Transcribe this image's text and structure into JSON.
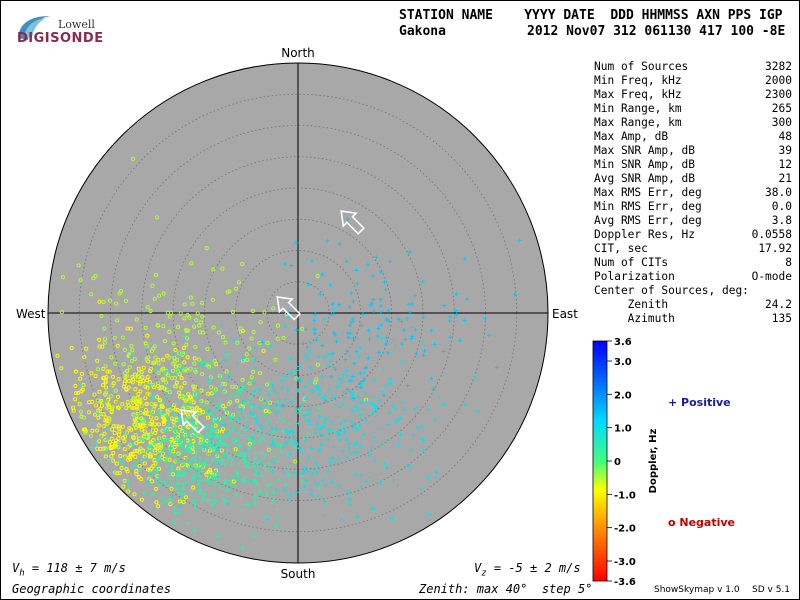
{
  "logo": {
    "line1": "Lowell",
    "line2": "DIGISONDE"
  },
  "header": {
    "row1": "STATION NAME    YYYY DATE  DDD HHMMSS AXN PPS IGP",
    "station": "Gakona",
    "date_row": "2012 Nov07 312 061130 417 100 -8E"
  },
  "stats": [
    {
      "label": "Num of Sources",
      "value": "3282"
    },
    {
      "label": "Min Freq, kHz",
      "value": "2000"
    },
    {
      "label": "Max Freq, kHz",
      "value": "2300"
    },
    {
      "label": "Min Range, km",
      "value": "265"
    },
    {
      "label": "Max Range, km",
      "value": "300"
    },
    {
      "label": "Max Amp, dB",
      "value": "48"
    },
    {
      "label": "Max SNR Amp, dB",
      "value": "39"
    },
    {
      "label": "Min SNR Amp, dB",
      "value": "12"
    },
    {
      "label": "Avg SNR Amp, dB",
      "value": "21"
    },
    {
      "label": "Max RMS Err, deg",
      "value": "38.0"
    },
    {
      "label": "Min RMS Err, deg",
      "value": "0.0"
    },
    {
      "label": "Avg RMS Err, deg",
      "value": "3.8"
    },
    {
      "label": "Doppler Res, Hz",
      "value": "0.0558"
    },
    {
      "label": "CIT, sec",
      "value": "17.92"
    },
    {
      "label": "Num of CITs",
      "value": "8"
    },
    {
      "label": "Polarization",
      "value": "O-mode"
    },
    {
      "label": "Center of Sources, deg:",
      "value": ""
    },
    {
      "label": "     Zenith",
      "value": "24.2"
    },
    {
      "label": "     Azimuth ",
      "value": "135"
    }
  ],
  "chart_data": {
    "type": "scatter",
    "projection": "polar-skymap",
    "directions": {
      "north": "North",
      "south": "South",
      "east": "East",
      "west": "West"
    },
    "zenith_max_deg": 40,
    "zenith_step_deg": 5,
    "center_of_sources": {
      "zenith": 24.2,
      "azimuth": 135
    },
    "clusters": [
      {
        "sign": "negative",
        "doppler_hz": -0.9,
        "zenith": 30,
        "azimuth": 235,
        "spread_deg": 7,
        "count": 520
      },
      {
        "sign": "negative",
        "doppler_hz": -0.5,
        "zenith": 22,
        "azimuth": 250,
        "spread_deg": 10,
        "count": 260
      },
      {
        "sign": "positive",
        "doppler_hz": 0.4,
        "zenith": 26,
        "azimuth": 215,
        "spread_deg": 7,
        "count": 620
      },
      {
        "sign": "positive",
        "doppler_hz": 1.0,
        "zenith": 18,
        "azimuth": 170,
        "spread_deg": 9,
        "count": 360
      },
      {
        "sign": "positive",
        "doppler_hz": 1.4,
        "zenith": 13,
        "azimuth": 100,
        "spread_deg": 8,
        "count": 140
      }
    ],
    "arrows": [
      {
        "zenith": 17,
        "azimuth": 30,
        "direction_deg": 315
      },
      {
        "zenith": 2,
        "azimuth": 300,
        "direction_deg": 315
      },
      {
        "zenith": 24.2,
        "azimuth": 225,
        "direction_deg": 315
      }
    ]
  },
  "colorbar": {
    "title": "Doppler, Hz",
    "max": 3.6,
    "min": -3.6,
    "ticks": [
      "3.6",
      "3.0",
      "2.0",
      "1.0",
      "0",
      "-1.0",
      "-2.0",
      "-3.0",
      "-3.6"
    ],
    "tick_values": [
      3.6,
      3.0,
      2.0,
      1.0,
      0,
      -1.0,
      -2.0,
      -3.0,
      -3.6
    ]
  },
  "legend": {
    "positive": "+ Positive",
    "negative": "o Negative"
  },
  "bottom": {
    "vh": "V",
    "vh_sub": "h",
    "vh_value": " = 118 ± 7 m/s",
    "vz": "V",
    "vz_sub": "z",
    "vz_value": " = -5 ± 2 m/s",
    "coords": "Geographic coordinates",
    "zenith_info": "Zenith: max 40°  step 5°"
  },
  "footer": {
    "app": "ShowSkymap v 1.0",
    "sd": "SD v 5.1"
  },
  "colors": {
    "disk": "#a8a8a8",
    "grid": "#707070"
  }
}
